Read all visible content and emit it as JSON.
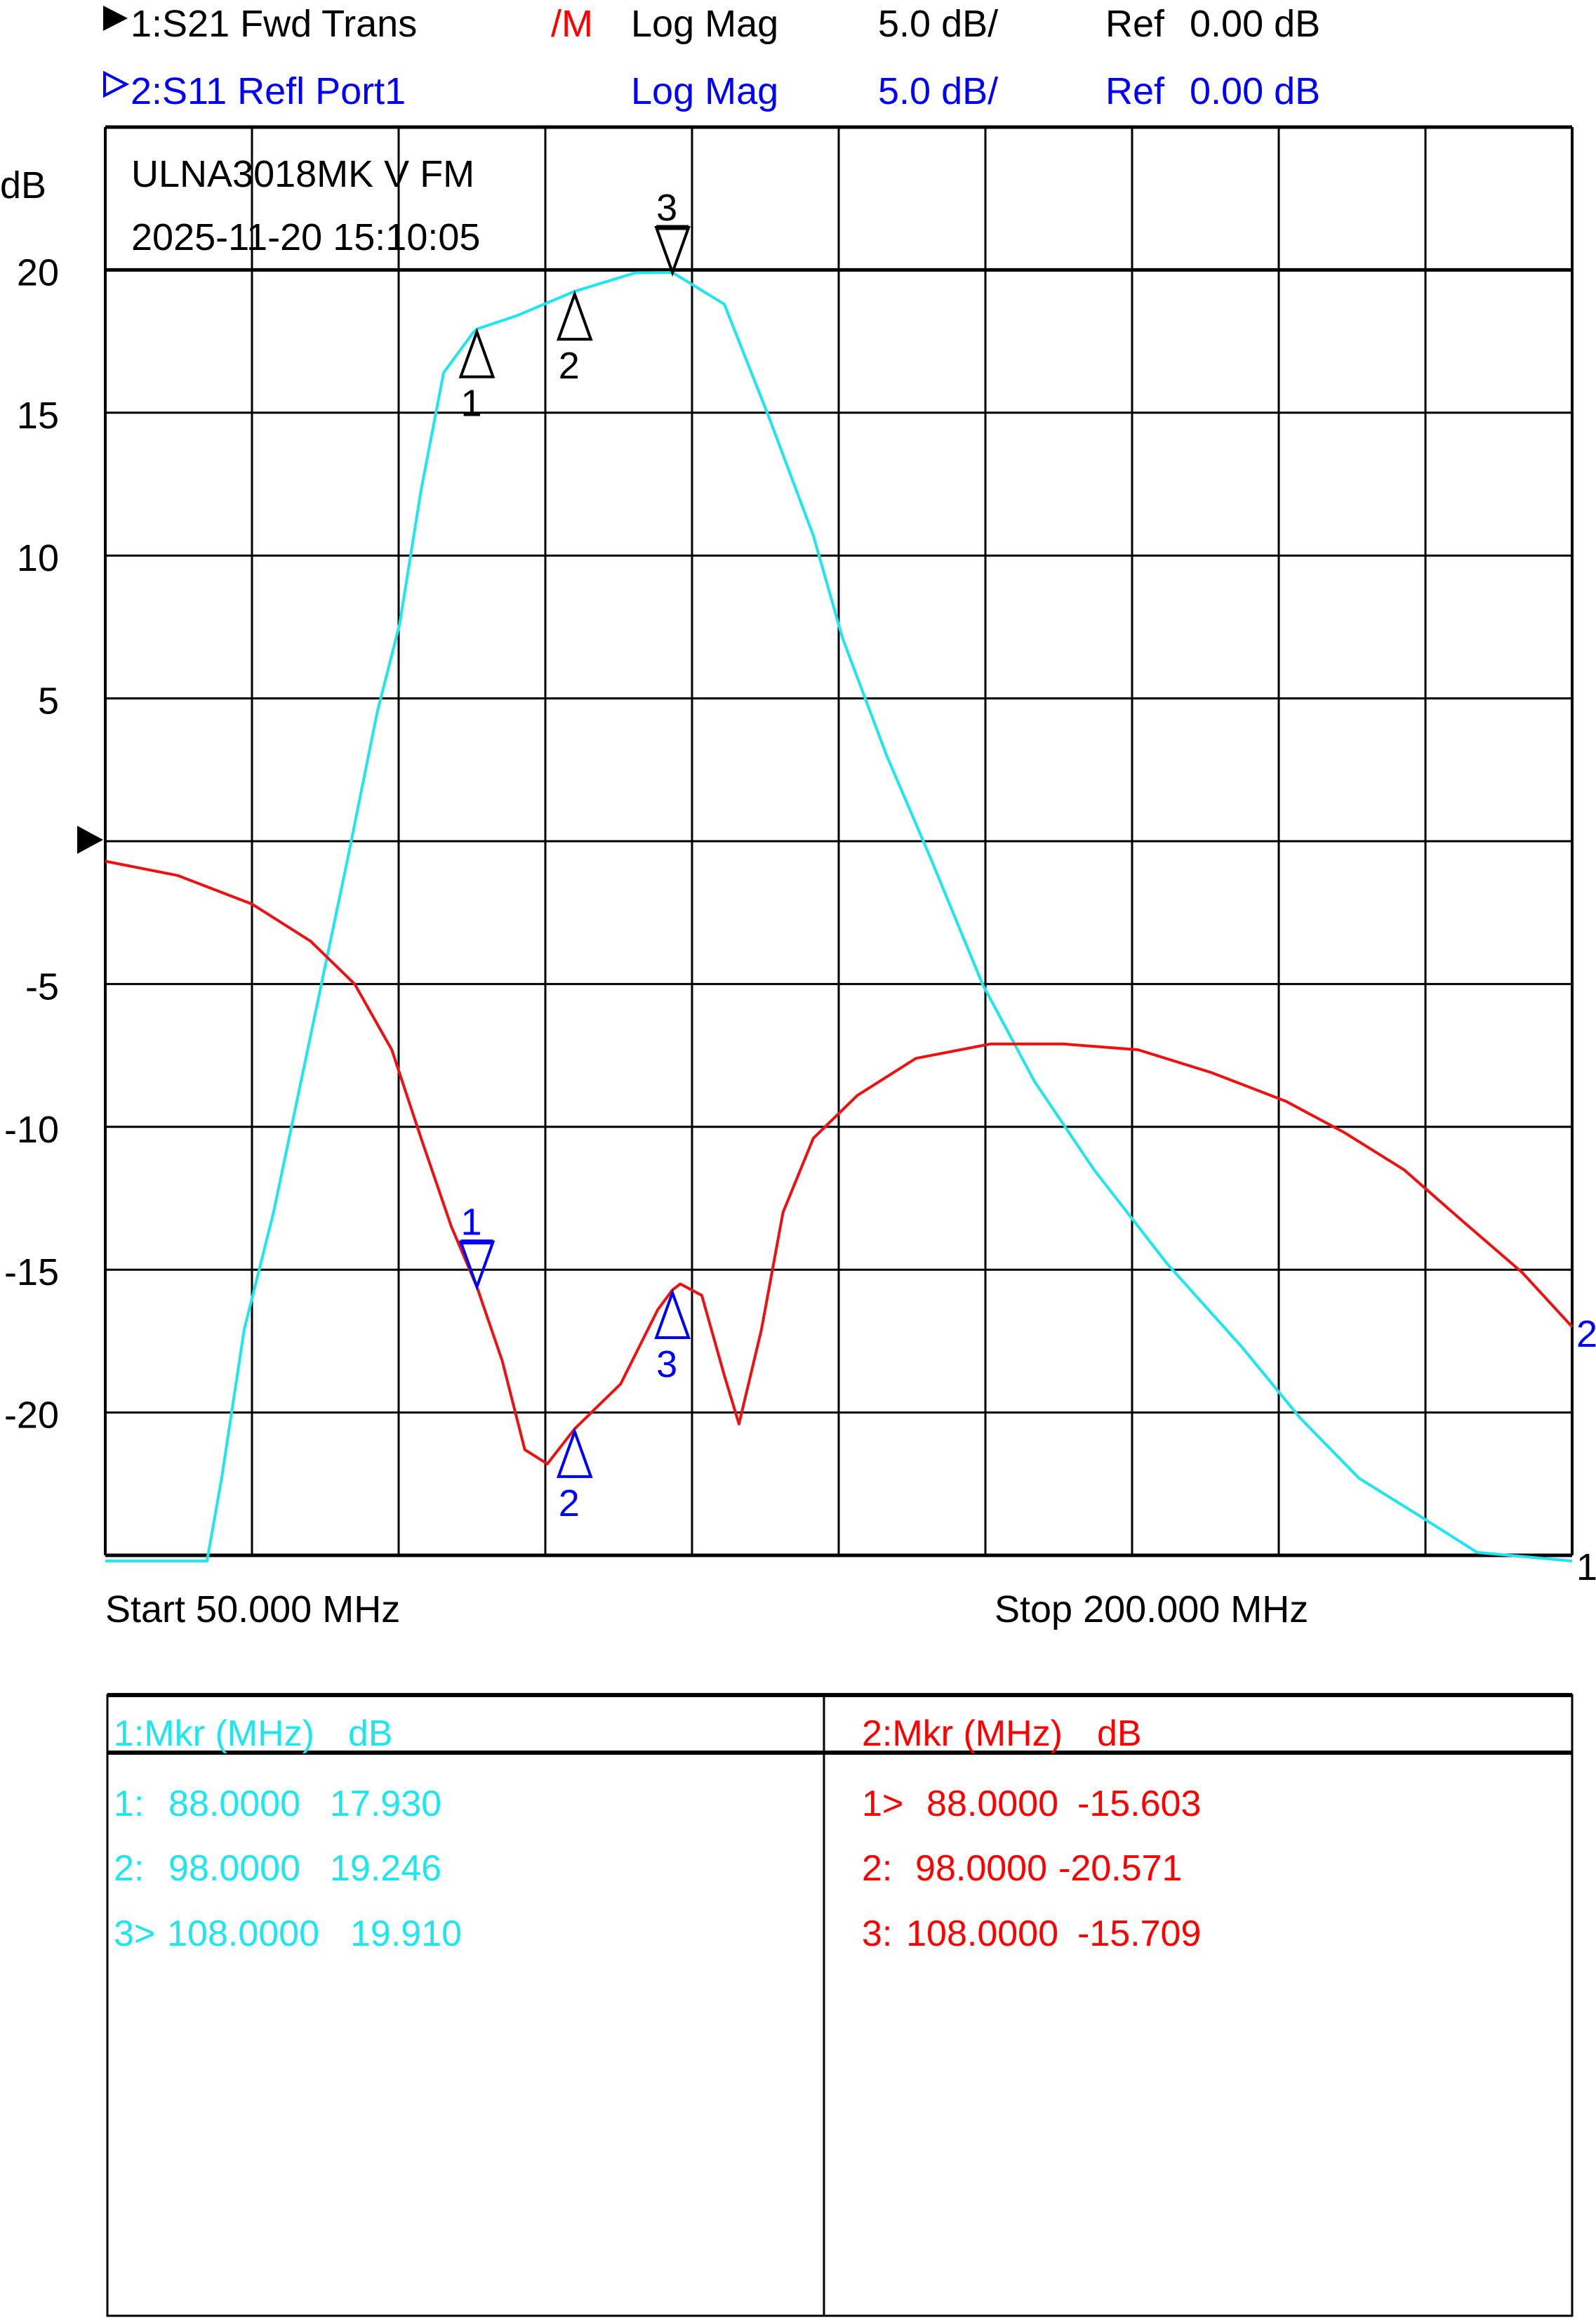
{
  "header": {
    "trace1": {
      "label": "1:S21 Fwd Trans",
      "mem": "/M",
      "format": "Log Mag",
      "scale": "5.0 dB/",
      "ref_label": "Ref",
      "ref_value": "0.00 dB"
    },
    "trace2": {
      "label": "2:S11 Refl Port1",
      "format": "Log Mag",
      "scale": "5.0 dB/",
      "ref_label": "Ref",
      "ref_value": "0.00 dB"
    }
  },
  "annotation": {
    "title": "ULNA3018MK V FM",
    "timestamp": "2025-11-20 15:10:05"
  },
  "colors": {
    "s21": "#1ee6ee",
    "s11": "#ee1111",
    "blue": "#0000ff",
    "red": "#ff0000",
    "grid": "#000000"
  },
  "chart_data": {
    "type": "line",
    "ylabel": "dB",
    "xlim": [
      50,
      200
    ],
    "ylim": [
      -25,
      25
    ],
    "grid": true,
    "yticks": [
      "20",
      "15",
      "10",
      "5",
      "-5",
      "-10",
      "-15",
      "-20"
    ],
    "ytick_values": [
      20,
      15,
      10,
      5,
      -5,
      -10,
      -15,
      -20
    ],
    "start_label": "Start 50.000 MHz",
    "stop_label": "Stop 200.000 MHz",
    "trace_end_labels": {
      "s11": "2",
      "s21": "1"
    },
    "series": [
      {
        "name": "S21 Fwd Trans",
        "x": [
          50,
          60.4,
          61.9,
          64.2,
          67.2,
          71.0,
          74.8,
          77.8,
          80.1,
          82.3,
          84.6,
          87.6,
          88,
          92.1,
          98,
          104.2,
          108,
          113.3,
          117.8,
          122.4,
          125.4,
          129.9,
          134.4,
          139.7,
          145.0,
          151.1,
          158.6,
          166.2,
          172.2,
          178.2,
          184.3,
          190.3,
          200
        ],
        "y": [
          -25.2,
          -25.2,
          -22.3,
          -17.1,
          -13.0,
          -6.8,
          -0.6,
          4.5,
          7.6,
          12.3,
          16.4,
          17.8,
          17.93,
          18.4,
          19.25,
          19.9,
          19.91,
          18.8,
          14.9,
          10.7,
          7.1,
          3.0,
          -0.6,
          -5.0,
          -8.4,
          -11.5,
          -14.8,
          -17.7,
          -20.2,
          -22.3,
          -23.6,
          -24.9,
          -25.2
        ]
      },
      {
        "name": "S11 Refl Port1",
        "x": [
          50,
          57.4,
          65.0,
          71.0,
          75.5,
          79.3,
          82.3,
          85.4,
          88.0,
          90.6,
          92.9,
          95.2,
          98.0,
          102.7,
          106.5,
          108.0,
          108.8,
          111.0,
          113.3,
          114.8,
          117.1,
          119.3,
          122.4,
          126.9,
          132.9,
          140.5,
          148.0,
          155.6,
          163.1,
          170.7,
          176.7,
          182.8,
          188.8,
          194.9,
          200
        ],
        "y": [
          -0.7,
          -1.2,
          -2.2,
          -3.5,
          -5.0,
          -7.3,
          -10.4,
          -13.5,
          -15.6,
          -18.2,
          -21.3,
          -21.8,
          -20.57,
          -19.0,
          -16.4,
          -15.71,
          -15.5,
          -15.9,
          -18.7,
          -20.4,
          -17.1,
          -13.0,
          -10.4,
          -8.9,
          -7.6,
          -7.1,
          -7.1,
          -7.3,
          -8.1,
          -9.1,
          -10.2,
          -11.5,
          -13.3,
          -15.1,
          -17.0
        ]
      }
    ],
    "markers": [
      {
        "trace": "s21",
        "id": "1",
        "freq": 88.0,
        "value": 17.93,
        "active": false
      },
      {
        "trace": "s21",
        "id": "2",
        "freq": 98.0,
        "value": 19.246,
        "active": false
      },
      {
        "trace": "s21",
        "id": "3",
        "freq": 108.0,
        "value": 19.91,
        "active": true
      },
      {
        "trace": "s11",
        "id": "1",
        "freq": 88.0,
        "value": -15.603,
        "active": true
      },
      {
        "trace": "s11",
        "id": "2",
        "freq": 98.0,
        "value": -20.571,
        "active": false
      },
      {
        "trace": "s11",
        "id": "3",
        "freq": 108.0,
        "value": -15.709,
        "active": false
      }
    ]
  },
  "marker_table": {
    "left": {
      "header_mkr": "1:Mkr (MHz)",
      "header_unit": "dB",
      "rows": [
        {
          "id": "1:",
          "freq": "88.0000",
          "value": "17.930"
        },
        {
          "id": "2:",
          "freq": "98.0000",
          "value": "19.246"
        },
        {
          "id": "3>",
          "freq": "108.0000",
          "value": "19.910"
        }
      ]
    },
    "right": {
      "header_mkr": "2:Mkr (MHz)",
      "header_unit": "dB",
      "rows": [
        {
          "id": "1>",
          "freq": "88.0000",
          "value": "-15.603"
        },
        {
          "id": "2:",
          "freq": "98.0000",
          "value": "-20.571"
        },
        {
          "id": "3:",
          "freq": "108.0000",
          "value": "-15.709"
        }
      ]
    }
  }
}
